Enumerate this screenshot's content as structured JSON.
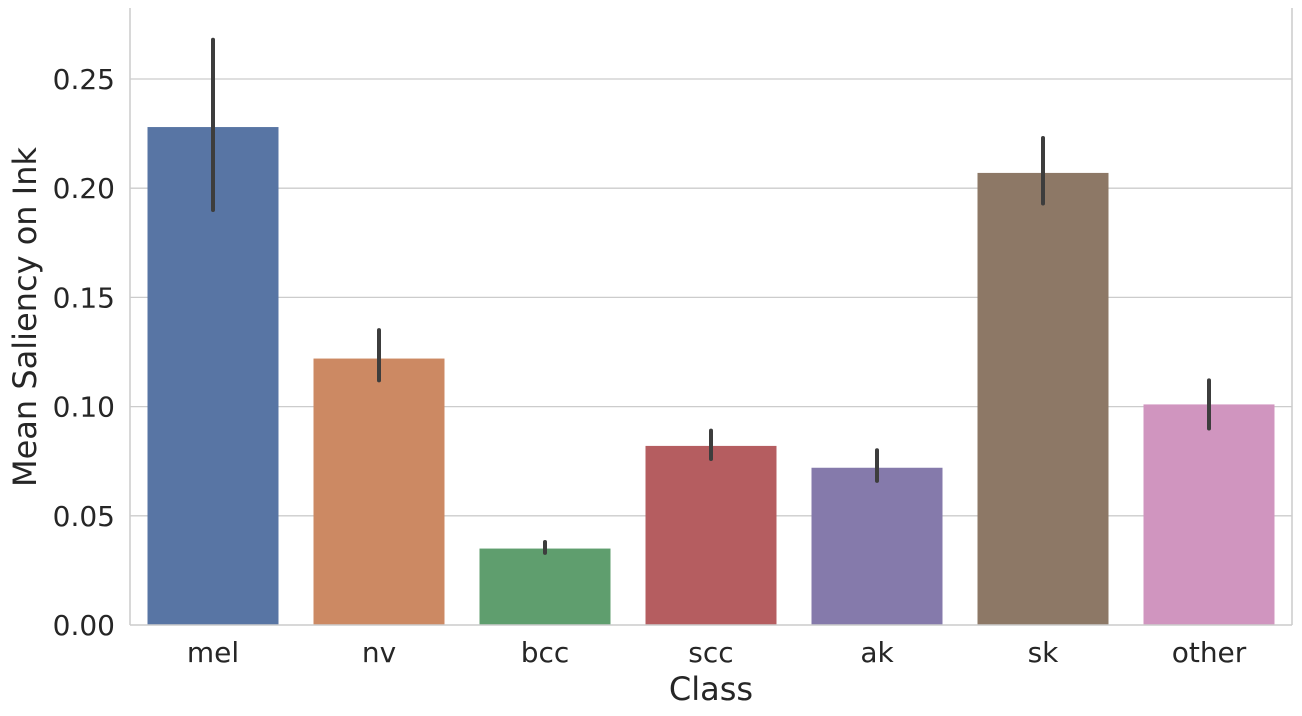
{
  "chart_data": {
    "type": "bar",
    "title": "",
    "xlabel": "Class",
    "ylabel": "Mean Saliency on Ink",
    "categories": [
      "mel",
      "nv",
      "bcc",
      "scc",
      "ak",
      "sk",
      "other"
    ],
    "values": [
      0.228,
      0.122,
      0.035,
      0.082,
      0.072,
      0.207,
      0.101
    ],
    "error_low": [
      0.19,
      0.112,
      0.033,
      0.076,
      0.066,
      0.193,
      0.09
    ],
    "error_high": [
      0.268,
      0.135,
      0.038,
      0.089,
      0.08,
      0.223,
      0.112
    ],
    "colors": [
      "#5875a4",
      "#cc8963",
      "#5f9e6e",
      "#b55d60",
      "#857aab",
      "#8d7866",
      "#d095bf"
    ],
    "ylim": [
      0,
      0.27
    ],
    "yticks": [
      "0.00",
      "0.05",
      "0.10",
      "0.15",
      "0.20",
      "0.25"
    ],
    "grid": "horizontal"
  }
}
